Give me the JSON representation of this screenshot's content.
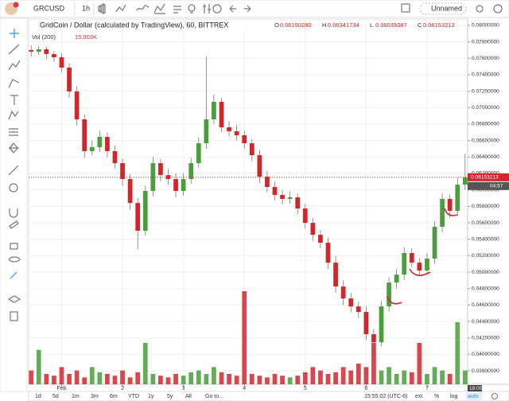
{
  "toolbar": {
    "symbol": "GRCUSD",
    "interval": "1h",
    "layout_name": "Unnamed"
  },
  "bottom_bar": {
    "ranges": [
      "1d",
      "5d",
      "1m",
      "3m",
      "6m",
      "YTD",
      "1y",
      "5y",
      "All"
    ],
    "goto": "Go to...",
    "clock": "15:55:02 (UTC-6)",
    "options": [
      "ext",
      "%",
      "log",
      "auto"
    ]
  },
  "chart_data": {
    "type": "candlestick",
    "title": "GridCoin / Dollar (calculated by TradingView), 60, BITTREX",
    "ohlc": [
      {
        "key": "O",
        "text": "0.06190280"
      },
      {
        "key": "H",
        "text": "0.06341734"
      },
      {
        "key": "L",
        "text": "0.06039387"
      },
      {
        "key": "C",
        "text": "0.06153213"
      }
    ],
    "last_price": 0.06153213,
    "countdown": "04:57",
    "time_marker": "18:00",
    "up_color": "#4a9e3c",
    "down_color": "#d3262b",
    "grid": true,
    "x": [
      -12,
      -9,
      -6,
      -3,
      0,
      3,
      6,
      9,
      12,
      15,
      18,
      21,
      24,
      27,
      30,
      33,
      36,
      39,
      42,
      45,
      48,
      51,
      54,
      57,
      60,
      63,
      66,
      69,
      72,
      75,
      78,
      81,
      84,
      87,
      90,
      93,
      96,
      99,
      102,
      105,
      108,
      111,
      114,
      117,
      120,
      123,
      126,
      129,
      132,
      135,
      138,
      141,
      144,
      147,
      150,
      153,
      156,
      159
    ],
    "open": [
      0.077,
      0.07681,
      0.0771,
      0.07652,
      0.07613,
      0.07487,
      0.07197,
      0.06858,
      0.06471,
      0.06519,
      0.06645,
      0.06471,
      0.06325,
      0.06132,
      0.05841,
      0.05503,
      0.05987,
      0.06325,
      0.0618,
      0.06132,
      0.05987,
      0.06132,
      0.06325,
      0.06567,
      0.06858,
      0.07071,
      0.06761,
      0.06713,
      0.06664,
      0.06567,
      0.06422,
      0.06161,
      0.06035,
      0.05938,
      0.0589,
      0.05909,
      0.05774,
      0.05599,
      0.05454,
      0.05357,
      0.05115,
      0.04825,
      0.0468,
      0.04583,
      0.04515,
      0.04244,
      0.04147,
      0.04583,
      0.04873,
      0.0497,
      0.05232,
      0.05115,
      0.05019,
      0.05164,
      0.05551,
      0.0589,
      0.05745,
      0.06064
    ],
    "high": [
      0.0776,
      0.0775,
      0.0774,
      0.0769,
      0.0766,
      0.0754,
      0.0726,
      0.0692,
      0.066,
      0.0672,
      0.067,
      0.0654,
      0.0638,
      0.0619,
      0.059,
      0.0605,
      0.064,
      0.0638,
      0.0626,
      0.062,
      0.062,
      0.0639,
      0.0664,
      0.0762,
      0.0716,
      0.0712,
      0.0684,
      0.0679,
      0.0672,
      0.0662,
      0.0648,
      0.0623,
      0.061,
      0.06,
      0.0598,
      0.0596,
      0.0583,
      0.0566,
      0.0551,
      0.0542,
      0.052,
      0.049,
      0.0475,
      0.0464,
      0.0458,
      0.0431,
      0.0465,
      0.0494,
      0.0504,
      0.053,
      0.0529,
      0.0517,
      0.0523,
      0.0562,
      0.0596,
      0.0594,
      0.0615,
      0.0644
    ],
    "low": [
      0.0762,
      0.0764,
      0.0759,
      0.0756,
      0.0743,
      0.0712,
      0.0678,
      0.0639,
      0.0642,
      0.0646,
      0.064,
      0.0626,
      0.0605,
      0.0576,
      0.0528,
      0.0544,
      0.0592,
      0.061,
      0.0606,
      0.0591,
      0.0593,
      0.0607,
      0.0627,
      0.065,
      0.068,
      0.067,
      0.0665,
      0.066,
      0.065,
      0.0635,
      0.0608,
      0.0597,
      0.0587,
      0.0582,
      0.0583,
      0.057,
      0.0553,
      0.0538,
      0.0529,
      0.0504,
      0.0475,
      0.046,
      0.0451,
      0.0444,
      0.0417,
      0.0398,
      0.041,
      0.0452,
      0.048,
      0.049,
      0.0506,
      0.0496,
      0.0497,
      0.051,
      0.0548,
      0.0566,
      0.0568,
      0.06
    ],
    "close": [
      0.07681,
      0.0771,
      0.07652,
      0.07613,
      0.07487,
      0.07197,
      0.06858,
      0.06471,
      0.06519,
      0.06645,
      0.06471,
      0.06325,
      0.06132,
      0.05841,
      0.05503,
      0.05987,
      0.06325,
      0.0618,
      0.06132,
      0.05987,
      0.06132,
      0.06325,
      0.06567,
      0.06858,
      0.07071,
      0.06761,
      0.06713,
      0.06664,
      0.06567,
      0.06422,
      0.06161,
      0.06035,
      0.05938,
      0.0589,
      0.05909,
      0.05774,
      0.05599,
      0.05454,
      0.05357,
      0.05115,
      0.04825,
      0.0468,
      0.04583,
      0.04515,
      0.04244,
      0.04147,
      0.04583,
      0.04873,
      0.0497,
      0.05232,
      0.05115,
      0.05019,
      0.05164,
      0.05551,
      0.0589,
      0.05745,
      0.06064,
      0.06153
    ],
    "volume_label": "Vol (200)",
    "volume_value_label": "15.003K",
    "volume": [
      4000,
      10000,
      3000,
      2500,
      5000,
      3000,
      4000,
      2000,
      5000,
      3500,
      3000,
      2500,
      4000,
      2000,
      3500,
      12000,
      3000,
      2500,
      2000,
      3000,
      2500,
      3500,
      4000,
      3000,
      5000,
      3500,
      3000,
      2500,
      27000,
      3000,
      2500,
      2000,
      3000,
      2500,
      2000,
      2500,
      3500,
      5000,
      4000,
      3000,
      3500,
      5000,
      4000,
      6000,
      5000,
      12000,
      4000,
      5000,
      3000,
      4000,
      3500,
      12000,
      3000,
      5000,
      4000,
      3000,
      18000,
      4000
    ],
    "volume_lim": [
      0,
      30000
    ],
    "xlim": [
      -13,
      160
    ],
    "xticks": [
      {
        "value": 0,
        "label": "Feb"
      },
      {
        "value": 24,
        "label": "2"
      },
      {
        "value": 48,
        "label": "3"
      },
      {
        "value": 72,
        "label": "4"
      },
      {
        "value": 96,
        "label": "5"
      },
      {
        "value": 120,
        "label": "6"
      },
      {
        "value": 144,
        "label": "7"
      }
    ],
    "ylim": [
      0.03636,
      0.08077
    ],
    "yticks": [
      {
        "value": 0.038,
        "label": "0.03800000"
      },
      {
        "value": 0.04,
        "label": "0.04000000"
      },
      {
        "value": 0.042,
        "label": "0.04200000"
      },
      {
        "value": 0.044,
        "label": "0.04400000"
      },
      {
        "value": 0.046,
        "label": "0.04600000"
      },
      {
        "value": 0.048,
        "label": "0.04800000"
      },
      {
        "value": 0.05,
        "label": "0.05000000"
      },
      {
        "value": 0.052,
        "label": "0.05200000"
      },
      {
        "value": 0.054,
        "label": "0.05400000"
      },
      {
        "value": 0.056,
        "label": "0.05600000"
      },
      {
        "value": 0.058,
        "label": "0.05800000"
      },
      {
        "value": 0.06,
        "label": "0.06000000"
      },
      {
        "value": 0.062,
        "label": "0.06200000"
      },
      {
        "value": 0.064,
        "label": "0.06400000"
      },
      {
        "value": 0.066,
        "label": "0.06600000"
      },
      {
        "value": 0.068,
        "label": "0.06800000"
      },
      {
        "value": 0.07,
        "label": "0.07000000"
      },
      {
        "value": 0.072,
        "label": "0.07200000"
      },
      {
        "value": 0.074,
        "label": "0.07400000"
      },
      {
        "value": 0.076,
        "label": "0.07600000"
      },
      {
        "value": 0.078,
        "label": "0.07800000"
      },
      {
        "value": 0.08,
        "label": "0.08000000"
      }
    ]
  }
}
